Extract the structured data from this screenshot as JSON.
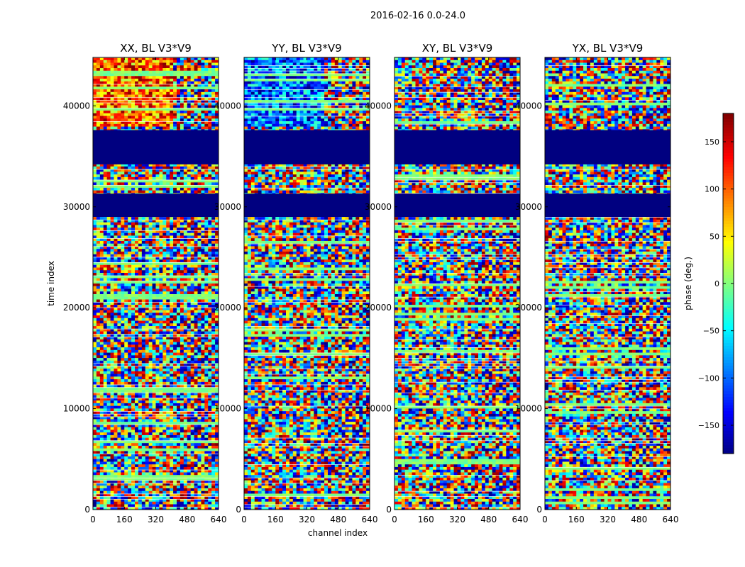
{
  "chart_data": {
    "type": "heatmap",
    "suptitle": "2016-02-16 0.0-24.0",
    "xlabel": "channel index",
    "ylabel": "time index",
    "xlim": [
      0,
      640
    ],
    "ylim": [
      0,
      44800
    ],
    "xticks": [
      "0",
      "160",
      "320",
      "480",
      "640"
    ],
    "yticks": [
      "0",
      "10000",
      "20000",
      "30000",
      "40000"
    ],
    "panels": [
      {
        "title": "XX, BL V3*V9",
        "style": "hot"
      },
      {
        "title": "YY, BL V3*V9",
        "style": "cold"
      },
      {
        "title": "XY, BL V3*V9",
        "style": "mixed"
      },
      {
        "title": "YX, BL V3*V9",
        "style": "mixed"
      }
    ],
    "blank_time_ranges": [
      [
        34200,
        37600
      ],
      [
        29000,
        31300
      ]
    ],
    "colorbar": {
      "label": "phase (deg.)",
      "range": [
        -180,
        180
      ],
      "ticks": [
        "150",
        "100",
        "50",
        "0",
        "−50",
        "−100",
        "−150"
      ],
      "colormap": "jet"
    }
  }
}
